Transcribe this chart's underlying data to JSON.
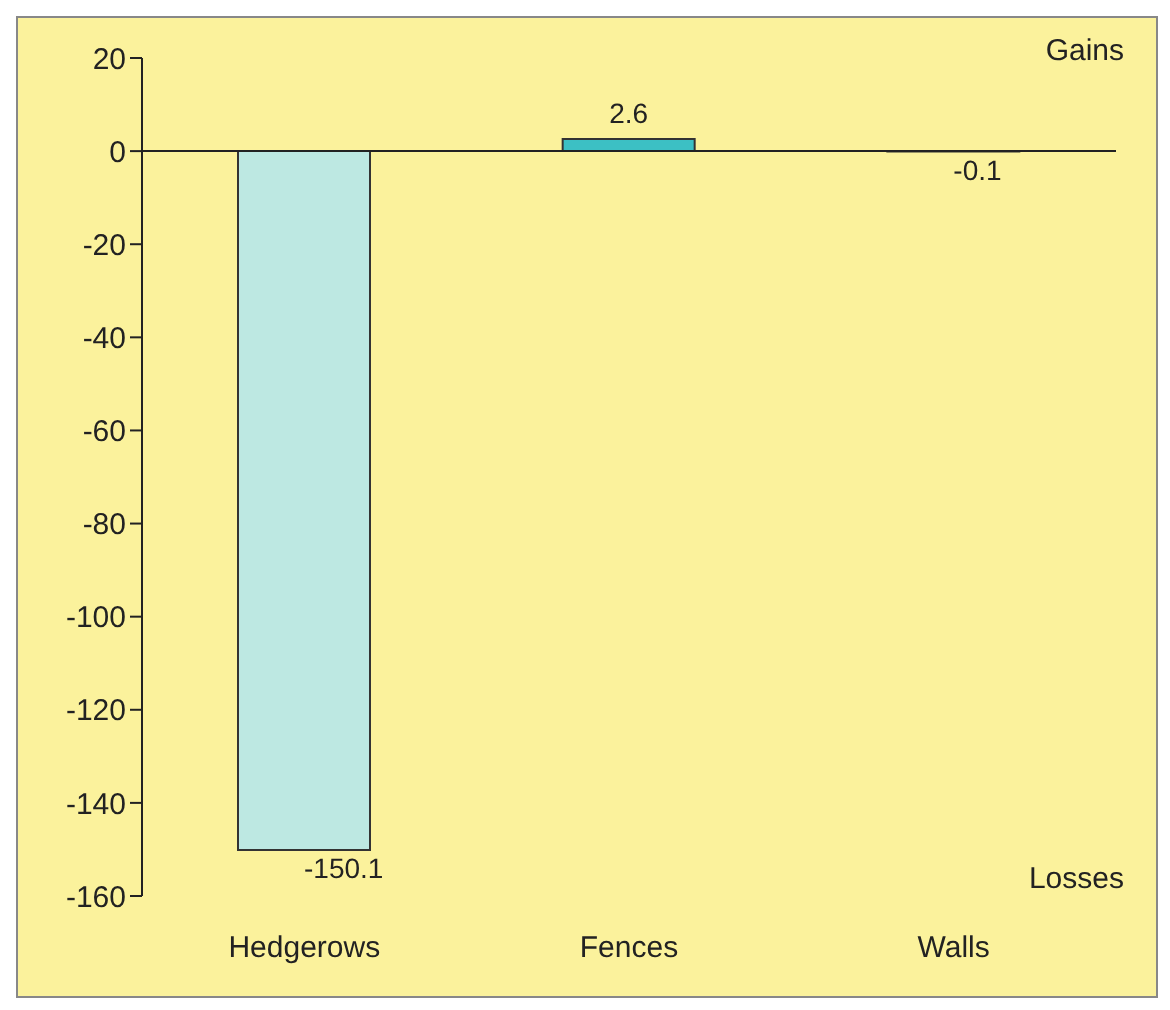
{
  "chart_data": {
    "type": "bar",
    "categories": [
      "Hedgerows",
      "Fences",
      "Walls"
    ],
    "values": [
      -150.1,
      2.6,
      -0.1
    ],
    "colors": [
      "#bde8e2",
      "#3cc0c4",
      "#3cc0c4"
    ],
    "ylim": [
      -160,
      20
    ],
    "yticks": [
      -160,
      -140,
      -120,
      -100,
      -80,
      -60,
      -40,
      -20,
      0,
      20
    ],
    "data_labels": true,
    "grid": false,
    "legend": false,
    "ref_lines": [
      {
        "axis": "y",
        "value": 0,
        "color": "#222222"
      }
    ],
    "annotations": [
      "Gains",
      "Losses"
    ]
  }
}
